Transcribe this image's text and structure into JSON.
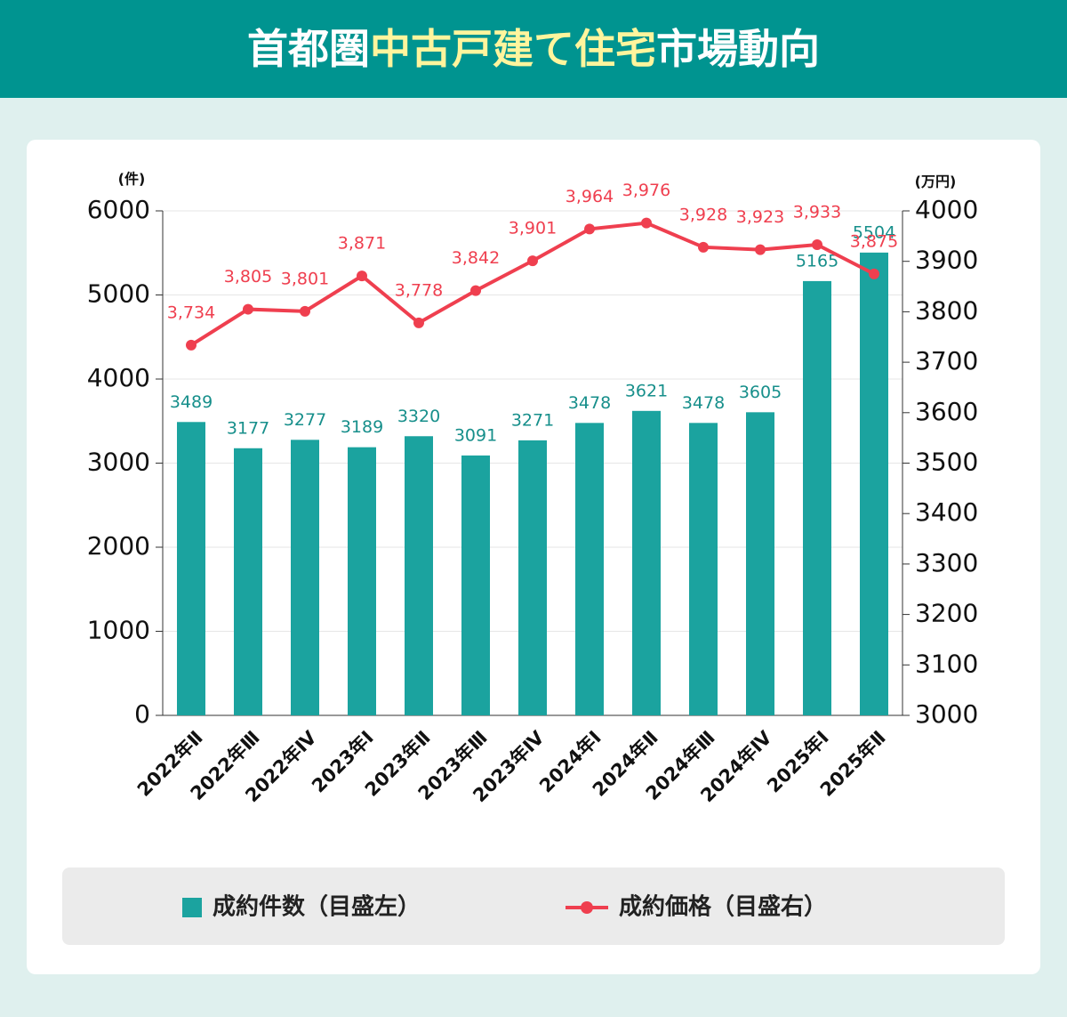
{
  "chart_data": {
    "type": "bar",
    "title": [
      "首都圏",
      "中古戸建て住宅",
      "市場動向"
    ],
    "y_label": "(件)",
    "y2_label": "(万円)",
    "categories": [
      "2022年Ⅱ",
      "2022年Ⅲ",
      "2022年Ⅳ",
      "2023年Ⅰ",
      "2023年Ⅱ",
      "2023年Ⅲ",
      "2023年Ⅳ",
      "2024年Ⅰ",
      "2024年Ⅱ",
      "2024年Ⅲ",
      "2024年Ⅳ",
      "2025年Ⅰ",
      "2025年Ⅱ"
    ],
    "series": [
      {
        "name": "成約件数（目盛左）",
        "type": "bar",
        "color": "#1ba39f",
        "values": [
          3489,
          3177,
          3277,
          3189,
          3320,
          3091,
          3271,
          3478,
          3621,
          3478,
          3605,
          5165,
          5504
        ]
      },
      {
        "name": "成約価格（目盛右）",
        "type": "line",
        "axis": "y2",
        "color": "#ef3f4f",
        "values": [
          3734,
          3805,
          3801,
          3871,
          3778,
          3842,
          3901,
          3964,
          3976,
          3928,
          3923,
          3933,
          3875
        ],
        "value_labels": [
          "3,734",
          "3,805",
          "3,801",
          "3,871",
          "3,778",
          "3,842",
          "3,901",
          "3,964",
          "3,976",
          "3,928",
          "3,923",
          "3,933",
          "3,875"
        ]
      }
    ],
    "ylim": [
      0,
      6000
    ],
    "yticks": [
      0,
      1000,
      2000,
      3000,
      4000,
      5000,
      6000
    ],
    "y2lim": [
      3000,
      4000
    ],
    "y2ticks": [
      3000,
      3100,
      3200,
      3300,
      3400,
      3500,
      3600,
      3700,
      3800,
      3900,
      4000
    ],
    "grid": true,
    "legend": "bottom"
  }
}
